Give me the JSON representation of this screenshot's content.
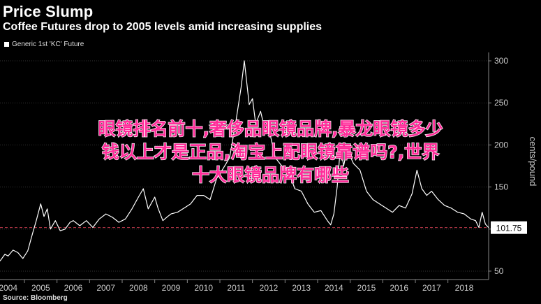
{
  "header": {
    "title": "Price Slump",
    "subtitle": "Coffee Futures drop to 2005 levels amid increasing supplies"
  },
  "legend": {
    "label": "Generic 1st 'KC' Future"
  },
  "source": "Source: Bloomberg",
  "overlay": {
    "lines": [
      "眼镜排名前十,奢侈品眼镜品牌,暴龙眼镜多少",
      "钱以上才是正品,淘宝上配眼镜靠谱吗?,世界",
      "十大眼镜品牌有哪些"
    ]
  },
  "colors": {
    "line": "#ffffff",
    "reference": "#c0394b",
    "background": "#000000",
    "overlay_text": "#ff2d9a"
  },
  "chart_data": {
    "type": "line",
    "title": "Price Slump",
    "subtitle": "Coffee Futures drop to 2005 levels amid increasing supplies",
    "ylabel": "cents/pound",
    "ylim": [
      40,
      310
    ],
    "yticks": [
      50,
      100,
      150,
      200,
      250,
      300
    ],
    "xlim": [
      2003.75,
      2018.75
    ],
    "xticks": [
      "2004",
      "2005",
      "2006",
      "2007",
      "2008",
      "2009",
      "2010",
      "2011",
      "2012",
      "2013",
      "2014",
      "2015",
      "2016",
      "2017",
      "2018"
    ],
    "reference_line": 101.75,
    "last_value_label": "101.75",
    "grid": "horizontal",
    "series": [
      {
        "name": "Generic 1st 'KC' Future",
        "x": [
          2003.75,
          2003.9,
          2004.0,
          2004.15,
          2004.3,
          2004.45,
          2004.6,
          2004.75,
          2004.85,
          2005.0,
          2005.1,
          2005.2,
          2005.3,
          2005.45,
          2005.6,
          2005.75,
          2005.9,
          2006.0,
          2006.2,
          2006.4,
          2006.6,
          2006.8,
          2007.0,
          2007.2,
          2007.4,
          2007.6,
          2007.8,
          2008.0,
          2008.15,
          2008.3,
          2008.5,
          2008.6,
          2008.75,
          2008.9,
          2009.0,
          2009.2,
          2009.4,
          2009.6,
          2009.8,
          2010.0,
          2010.2,
          2010.4,
          2010.6,
          2010.8,
          2011.0,
          2011.15,
          2011.25,
          2011.4,
          2011.5,
          2011.6,
          2011.75,
          2011.9,
          2012.0,
          2012.2,
          2012.4,
          2012.6,
          2012.8,
          2013.0,
          2013.2,
          2013.4,
          2013.6,
          2013.8,
          2013.9,
          2014.0,
          2014.1,
          2014.2,
          2014.3,
          2014.4,
          2014.6,
          2014.8,
          2015.0,
          2015.2,
          2015.4,
          2015.6,
          2015.8,
          2016.0,
          2016.2,
          2016.4,
          2016.55,
          2016.7,
          2016.85,
          2017.0,
          2017.2,
          2017.4,
          2017.6,
          2017.8,
          2018.0,
          2018.2,
          2018.35,
          2018.45,
          2018.55,
          2018.65,
          2018.75
        ],
        "values": [
          62,
          70,
          68,
          75,
          72,
          65,
          74,
          95,
          108,
          130,
          115,
          124,
          100,
          110,
          98,
          100,
          108,
          110,
          104,
          110,
          102,
          112,
          118,
          114,
          108,
          112,
          124,
          138,
          148,
          124,
          138,
          125,
          110,
          115,
          118,
          120,
          125,
          130,
          140,
          140,
          135,
          160,
          172,
          185,
          230,
          268,
          300,
          248,
          255,
          225,
          240,
          215,
          220,
          185,
          175,
          170,
          148,
          145,
          130,
          120,
          122,
          110,
          105,
          118,
          150,
          198,
          175,
          195,
          178,
          170,
          145,
          135,
          130,
          125,
          120,
          128,
          125,
          142,
          170,
          148,
          140,
          145,
          135,
          128,
          125,
          120,
          118,
          112,
          110,
          102,
          120,
          106,
          101.75
        ]
      }
    ]
  }
}
